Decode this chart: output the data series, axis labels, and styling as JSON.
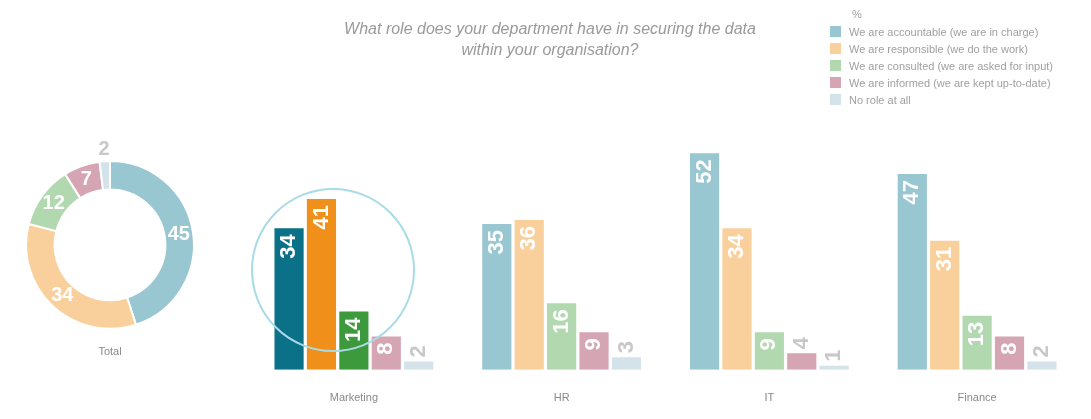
{
  "chart_data": [
    {
      "type": "donut",
      "xlabel": "Total",
      "categories": [
        null,
        null,
        null,
        null,
        null
      ],
      "values": [
        45,
        34,
        12,
        7,
        2
      ],
      "colors": [
        "#98c6d1",
        "#f9d09c",
        "#b2d8b0",
        "#d6a5b3",
        "#d4e3ea"
      ],
      "data_labels": true
    },
    {
      "type": "bar",
      "title": "What role does your department have in securing the data within your organisation?",
      "legend_title": "%",
      "legend": "top right",
      "data_labels": true,
      "categories": [
        "Marketing",
        "HR",
        "IT",
        "Finance"
      ],
      "series": [
        {
          "name": "We are accountable (we are in charge)",
          "color": "#98c6d1",
          "colors": [
            "#0a7189",
            "#98c6d1",
            "#98c6d1",
            "#98c6d1"
          ],
          "values": [
            34,
            35,
            52,
            47
          ]
        },
        {
          "name": "We are responsible (we do the work)",
          "color": "#f9d09c",
          "colors": [
            "#f0901a",
            "#f9d09c",
            "#f9d09c",
            "#f9d09c"
          ],
          "values": [
            41,
            36,
            34,
            31
          ]
        },
        {
          "name": "We are consulted (we are asked for input)",
          "color": "#b2d8b0",
          "colors": [
            "#3c9a3c",
            "#b2d8b0",
            "#b2d8b0",
            "#b2d8b0"
          ],
          "values": [
            14,
            16,
            9,
            13
          ]
        },
        {
          "name": "We are informed (we are kept up-to-date)",
          "color": "#d6a5b3",
          "values": [
            8,
            9,
            4,
            8
          ]
        },
        {
          "name": "No role at all",
          "color": "#d4e3ea",
          "values": [
            2,
            3,
            1,
            2
          ]
        }
      ]
    }
  ]
}
